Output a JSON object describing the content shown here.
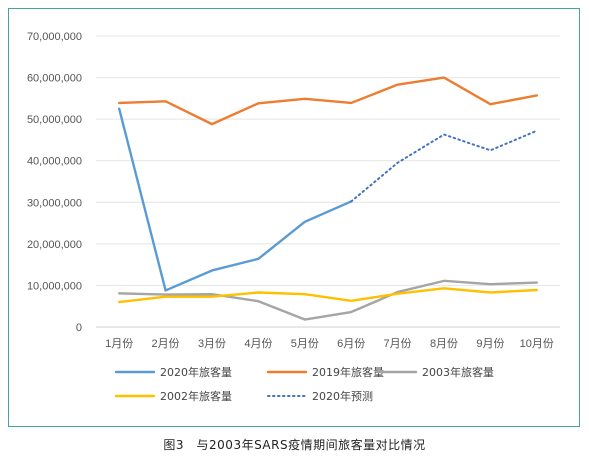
{
  "chart_data": {
    "type": "line",
    "title": "",
    "xlabel": "",
    "ylabel": "",
    "categories": [
      "1月份",
      "2月份",
      "3月份",
      "4月份",
      "5月份",
      "6月份",
      "7月份",
      "8月份",
      "9月份",
      "10月份"
    ],
    "ylim": [
      0,
      70000000
    ],
    "yticks": [
      0,
      10000000,
      20000000,
      30000000,
      40000000,
      50000000,
      60000000,
      70000000
    ],
    "ytick_labels": [
      "0",
      "10,000,000",
      "20,000,000",
      "30,000,000",
      "40,000,000",
      "50,000,000",
      "60,000,000",
      "70,000,000"
    ],
    "grid": true,
    "legend_position": "bottom",
    "series": [
      {
        "name": "2020年旅客量",
        "color": "#5b9bd5",
        "style": "solid",
        "values": [
          52500000,
          8800000,
          13600000,
          16400000,
          25300000,
          30200000,
          null,
          null,
          null,
          null
        ]
      },
      {
        "name": "2019年旅客量",
        "color": "#ed7d31",
        "style": "solid",
        "values": [
          53900000,
          54300000,
          48800000,
          53800000,
          54900000,
          53900000,
          58300000,
          60000000,
          53600000,
          55700000
        ]
      },
      {
        "name": "2003年旅客量",
        "color": "#a5a5a5",
        "style": "solid",
        "values": [
          8100000,
          7800000,
          7900000,
          6200000,
          1800000,
          3600000,
          8400000,
          11100000,
          10300000,
          10700000
        ]
      },
      {
        "name": "2002年旅客量",
        "color": "#ffc000",
        "style": "solid",
        "values": [
          6000000,
          7300000,
          7300000,
          8300000,
          7900000,
          6300000,
          8000000,
          9300000,
          8300000,
          8900000
        ]
      },
      {
        "name": "2020年预测",
        "color": "#4472c4",
        "style": "dotted",
        "values": [
          null,
          null,
          null,
          null,
          null,
          30200000,
          39500000,
          46300000,
          42500000,
          47200000
        ]
      }
    ]
  },
  "caption": "图3　与2003年SARS疫情期间旅客量对比情况"
}
